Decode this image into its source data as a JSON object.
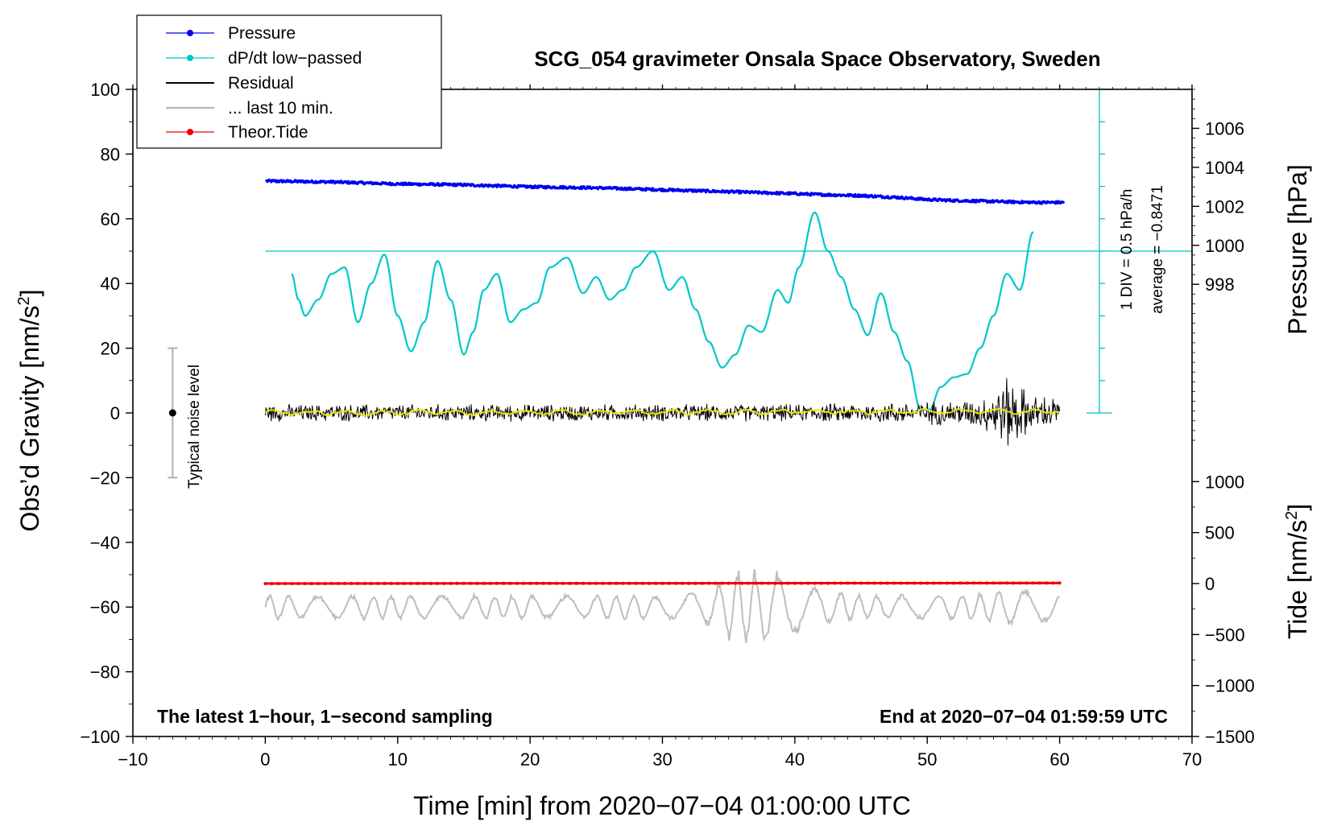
{
  "chart_data": {
    "type": "line",
    "title": "SCG_054 gravimeter Onsala Space Observatory, Sweden",
    "xlabel": "Time [min] from 2020−07−04 01:00:00 UTC",
    "ylabel": "Obs’d Gravity [nm/s",
    "ylabel_sup": "2",
    "ylabel_close": "]",
    "xlim": [
      -10,
      70
    ],
    "ylim": [
      -100,
      100
    ],
    "x_ticks": [
      -10,
      0,
      10,
      20,
      30,
      40,
      50,
      60,
      70
    ],
    "x_tick_labels": [
      "−10",
      "0",
      "10",
      "20",
      "30",
      "40",
      "50",
      "60",
      "70"
    ],
    "y_ticks": [
      -100,
      -80,
      -60,
      -40,
      -20,
      0,
      20,
      40,
      60,
      80,
      100
    ],
    "y_tick_labels": [
      "−100",
      "−80",
      "−60",
      "−40",
      "−20",
      "0",
      "20",
      "40",
      "60",
      "80",
      "100"
    ],
    "pressure_axis": {
      "label": "Pressure [hPa]",
      "range_hpa": [
        990,
        1008
      ],
      "ticks": [
        998,
        1000,
        1002,
        1004,
        1006
      ],
      "tick_labels": [
        "998",
        "1000",
        "1002",
        "1004",
        "1006"
      ]
    },
    "tide_axis": {
      "label": "Tide [nm/s",
      "label_sup": "2",
      "label_close": "]",
      "range": [
        -1500,
        1500
      ],
      "ticks": [
        -1500,
        -1000,
        -500,
        0,
        500,
        1000
      ],
      "tick_labels": [
        "−1500",
        "−1000",
        "−500",
        "0",
        "500",
        "1000"
      ]
    },
    "legend": [
      {
        "label": "Pressure",
        "color": "#0000ee",
        "marker": true
      },
      {
        "label": "dP/dt low−passed",
        "color": "#00c8c8",
        "marker": true
      },
      {
        "label": "Residual",
        "color": "#000000",
        "marker": false
      },
      {
        "label": "... last 10 min.",
        "color": "#bdbdbd",
        "marker": false
      },
      {
        "label": "Theor.Tide",
        "color": "#ee0000",
        "marker": true
      }
    ],
    "series": [
      {
        "name": "Pressure",
        "unit": "hPa",
        "color": "#0000ee",
        "x": [
          0,
          5,
          10,
          15,
          20,
          25,
          30,
          35,
          40,
          42,
          45,
          48,
          50,
          52,
          55,
          58,
          60
        ],
        "values": [
          1003.3,
          1003.25,
          1003.15,
          1003.1,
          1003.0,
          1002.95,
          1002.85,
          1002.75,
          1002.65,
          1002.6,
          1002.55,
          1002.45,
          1002.35,
          1002.3,
          1002.25,
          1002.2,
          1002.2
        ]
      },
      {
        "name": "dP/dt low−passed",
        "unit": "gravity-axis units",
        "color": "#00c8c8",
        "x": [
          2,
          2.5,
          3,
          4,
          5,
          6,
          7,
          8,
          9,
          10,
          11,
          12,
          13,
          14,
          15,
          15.7,
          16.5,
          17.5,
          18.5,
          19.5,
          20.5,
          21.5,
          22.8,
          24,
          25,
          26,
          27,
          28,
          29.3,
          30.5,
          31.5,
          32.5,
          33.5,
          34.5,
          35.5,
          36.5,
          37.5,
          38.7,
          39.5,
          40.3,
          41.5,
          42.5,
          43.5,
          44.5,
          45.5,
          46.5,
          47.5,
          48.5,
          49.5,
          50.2,
          51,
          52,
          53,
          54,
          55,
          56,
          57,
          58
        ],
        "values": [
          43,
          35,
          30,
          35,
          43,
          45,
          28,
          40,
          49,
          30,
          19,
          28,
          47,
          35,
          18,
          25,
          38,
          43,
          28,
          32,
          34,
          45,
          48,
          37,
          42,
          35,
          38,
          45,
          50,
          38,
          42,
          32,
          22,
          14,
          18,
          27,
          25,
          38,
          34,
          45,
          62,
          50,
          42,
          32,
          24,
          37,
          25,
          16,
          1,
          1,
          8,
          11,
          12,
          20,
          30,
          43,
          38,
          56
        ]
      },
      {
        "name": "Residual",
        "unit": "nm/s²",
        "color": "#000000",
        "x": [
          0,
          10,
          20,
          30,
          40,
          50,
          54,
          55,
          56,
          57,
          58,
          60
        ],
        "amplitude": [
          3,
          3,
          3,
          3,
          3,
          4,
          5,
          8,
          13,
          10,
          6,
          6
        ]
      },
      {
        "name": "Residual smoothed",
        "unit": "nm/s²",
        "color": "#e8e800",
        "x": [
          0,
          60
        ],
        "values": [
          0,
          0.5
        ]
      },
      {
        "name": "... last 10 min.",
        "unit": "gravity-axis units",
        "color": "#bdbdbd",
        "offset": -60,
        "x": [
          0,
          10,
          20,
          30,
          33,
          34.5,
          35.5,
          37,
          38.5,
          40,
          42,
          45,
          50,
          55,
          56.5,
          60
        ],
        "amplitude": [
          4,
          4,
          4,
          4,
          5,
          8,
          13,
          12,
          12,
          9,
          6,
          4,
          4,
          5,
          6,
          5
        ]
      },
      {
        "name": "Theor.Tide",
        "unit": "nm/s²",
        "color": "#ee0000",
        "x": [
          0,
          60
        ],
        "values": [
          0,
          5
        ]
      }
    ],
    "noise_level": {
      "label": "Typical noise level",
      "x": -7,
      "center": 0,
      "range": [
        -20,
        20
      ]
    },
    "side_labels": {
      "div": "1 DIV = 0.5 hPa/h",
      "average": "average = −0.8471"
    },
    "dpdt_reference_line": 50,
    "annotations": {
      "left": "The latest 1−hour, 1−second sampling",
      "right": "End at 2020−07−04 01:59:59 UTC"
    }
  }
}
